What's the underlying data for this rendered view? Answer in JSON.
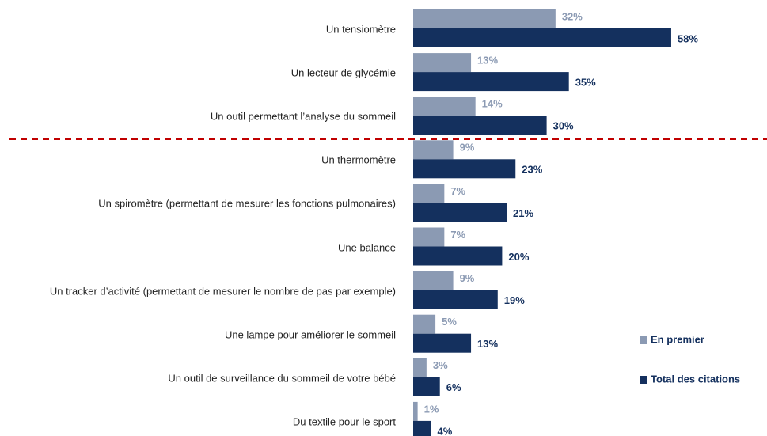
{
  "chart_data": {
    "type": "bar",
    "orientation": "horizontal",
    "categories": [
      "Un tensiomètre",
      "Un lecteur de glycémie",
      "Un outil permettant l’analyse du sommeil",
      "Un thermomètre",
      "Un spiromètre (permettant de mesurer les fonctions pulmonaires)",
      "Une balance",
      "Un tracker d’activité (permettant de mesurer le nombre de pas par exemple)",
      "Une lampe pour améliorer le sommeil",
      "Un outil de surveillance du sommeil de votre bébé",
      "Du textile pour le sport"
    ],
    "series": [
      {
        "name": "En premier",
        "color": "#8b9ab3",
        "values": [
          32,
          13,
          14,
          9,
          7,
          7,
          9,
          5,
          3,
          1
        ],
        "value_labels": [
          "32%",
          "13%",
          "14%",
          "9%",
          "7%",
          "7%",
          "9%",
          "5%",
          "3%",
          "1%"
        ]
      },
      {
        "name": "Total des citations",
        "color": "#14305e",
        "values": [
          58,
          35,
          30,
          23,
          21,
          20,
          19,
          13,
          6,
          4
        ],
        "value_labels": [
          "58%",
          "35%",
          "30%",
          "23%",
          "21%",
          "20%",
          "19%",
          "13%",
          "6%",
          "4%"
        ]
      }
    ]
  }
}
